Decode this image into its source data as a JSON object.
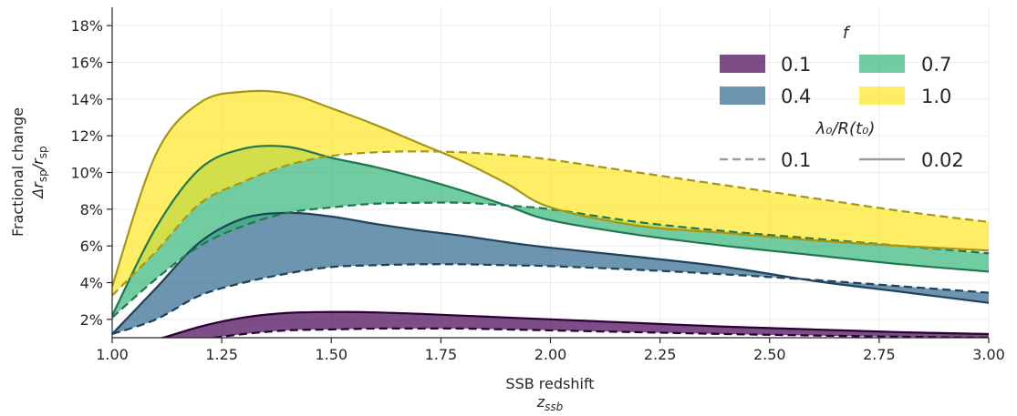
{
  "chart_data": {
    "type": "area",
    "xlabel": "SSB redshift",
    "xlabel_symbol": "z",
    "xlabel_symbol_sub": "ssb",
    "ylabel": "Fractional change",
    "ylabel_symbol": "Δr",
    "ylabel_symbol_sub": "sp",
    "ylabel_symbol_div": "/r",
    "ylabel_symbol_sub2": "sp",
    "xlim": [
      1.0,
      3.0
    ],
    "ylim": [
      1.0,
      19.0
    ],
    "x_ticks": [
      "1.00",
      "1.25",
      "1.50",
      "1.75",
      "2.00",
      "2.25",
      "2.50",
      "2.75",
      "3.00"
    ],
    "y_ticks": [
      "2%",
      "4%",
      "6%",
      "8%",
      "10%",
      "12%",
      "14%",
      "16%",
      "18%"
    ],
    "y_tick_values": [
      2,
      4,
      6,
      8,
      10,
      12,
      14,
      16,
      18
    ],
    "x_tick_values": [
      1.0,
      1.25,
      1.5,
      1.75,
      2.0,
      2.25,
      2.5,
      2.75,
      3.0
    ],
    "grid": true,
    "legend": {
      "placement": "top-right",
      "title_f": "f",
      "title_lambda": "λ₀/R(t₀)",
      "fill_entries": [
        "0.1",
        "0.4",
        "0.7",
        "1.0"
      ],
      "line_entries": [
        "0.1",
        "0.02"
      ]
    },
    "x": [
      1.0,
      1.1,
      1.2,
      1.3,
      1.4,
      1.5,
      1.6,
      1.7,
      1.8,
      1.9,
      2.0,
      2.2,
      2.4,
      2.6,
      2.8,
      3.0
    ],
    "series": [
      {
        "name": "0.1",
        "color": "#440154",
        "dashed_values": [
          0.3,
          0.6,
          0.9,
          1.2,
          1.4,
          1.45,
          1.5,
          1.5,
          1.5,
          1.45,
          1.4,
          1.3,
          1.2,
          1.12,
          1.05,
          1.0
        ],
        "solid_values": [
          0.5,
          0.9,
          1.6,
          2.1,
          2.35,
          2.4,
          2.38,
          2.3,
          2.2,
          2.1,
          2.0,
          1.8,
          1.6,
          1.45,
          1.3,
          1.2
        ]
      },
      {
        "name": "0.4",
        "color": "#31688e",
        "dashed_values": [
          1.2,
          2.0,
          3.3,
          4.0,
          4.5,
          4.85,
          4.95,
          5.0,
          5.0,
          4.95,
          4.9,
          4.7,
          4.45,
          4.15,
          3.8,
          3.45
        ],
        "solid_values": [
          1.2,
          3.7,
          6.2,
          7.5,
          7.8,
          7.6,
          7.2,
          6.85,
          6.55,
          6.2,
          5.9,
          5.4,
          4.85,
          4.1,
          3.5,
          2.9
        ]
      },
      {
        "name": "0.7",
        "color": "#35b779",
        "dashed_values": [
          2.1,
          4.2,
          6.0,
          7.1,
          7.8,
          8.1,
          8.3,
          8.35,
          8.35,
          8.2,
          8.0,
          7.3,
          6.8,
          6.4,
          6.0,
          5.6
        ],
        "solid_values": [
          2.2,
          7.0,
          10.2,
          11.3,
          11.4,
          10.8,
          10.3,
          9.7,
          9.0,
          8.2,
          7.4,
          6.6,
          6.0,
          5.5,
          5.0,
          4.6
        ]
      },
      {
        "name": "1.0",
        "color": "#fde725",
        "dashed_values": [
          3.3,
          5.7,
          8.3,
          9.5,
          10.4,
          10.9,
          11.1,
          11.15,
          11.1,
          10.95,
          10.7,
          10.0,
          9.3,
          8.6,
          7.9,
          7.3
        ],
        "solid_values": [
          3.8,
          11.0,
          13.8,
          14.4,
          14.3,
          13.5,
          12.6,
          11.6,
          10.6,
          9.4,
          8.1,
          7.1,
          6.7,
          6.3,
          6.0,
          5.75
        ]
      }
    ]
  }
}
